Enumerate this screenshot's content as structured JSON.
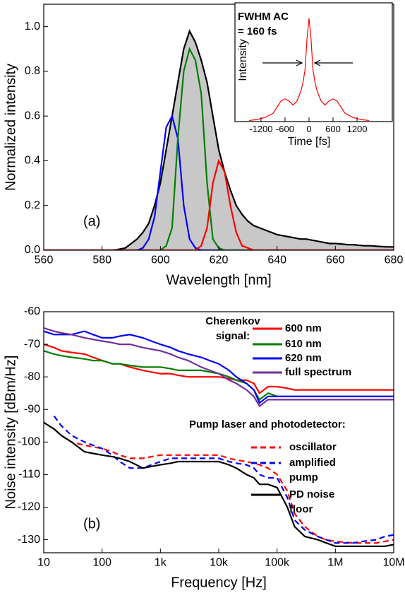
{
  "chart_data": [
    {
      "type": "line",
      "xlabel": "Wavelength [nm]",
      "ylabel": "Normalized intensity",
      "annotation": "(a)",
      "xlim": [
        560,
        680
      ],
      "ylim": [
        0,
        1.1
      ],
      "xticks": [
        560,
        580,
        600,
        620,
        640,
        660,
        680
      ],
      "yticks": [
        {
          "value": 0,
          "label": "0.0"
        },
        0.2,
        0.4,
        0.6,
        0.8,
        {
          "value": 1,
          "label": "1.0"
        }
      ],
      "x": [
        560,
        562,
        564,
        566,
        568,
        570,
        572,
        574,
        576,
        578,
        580,
        582,
        584,
        586,
        588,
        590,
        592,
        594,
        596,
        598,
        600,
        602,
        604,
        606,
        608,
        610,
        612,
        614,
        616,
        618,
        620,
        622,
        624,
        626,
        628,
        630,
        632,
        634,
        636,
        638,
        640,
        642,
        644,
        646,
        648,
        650,
        652,
        654,
        656,
        658,
        660,
        662,
        664,
        666,
        668,
        670,
        672,
        674,
        676,
        678,
        680
      ],
      "series": [
        {
          "color": "#000000",
          "fill": "#c8c8c8",
          "values": [
            0,
            0,
            0,
            0,
            0,
            0,
            0,
            0,
            0,
            0,
            0,
            0,
            0,
            0.005,
            0.01,
            0.03,
            0.05,
            0.08,
            0.12,
            0.2,
            0.3,
            0.45,
            0.6,
            0.75,
            0.9,
            0.98,
            0.93,
            0.85,
            0.75,
            0.6,
            0.45,
            0.35,
            0.27,
            0.2,
            0.16,
            0.13,
            0.11,
            0.1,
            0.09,
            0.08,
            0.07,
            0.065,
            0.06,
            0.055,
            0.05,
            0.05,
            0.045,
            0.04,
            0.035,
            0.03,
            0.03,
            0.028,
            0.025,
            0.025,
            0.022,
            0.02,
            0.02,
            0.018,
            0.016,
            0.015,
            0.015
          ]
        },
        {
          "color": "#0000ff",
          "values": [
            0,
            0,
            0,
            0,
            0,
            0,
            0,
            0,
            0,
            0,
            0,
            0,
            0,
            0,
            0,
            0,
            0,
            0.01,
            0.05,
            0.15,
            0.35,
            0.55,
            0.6,
            0.5,
            0.2,
            0.05,
            0.01,
            0,
            0,
            0,
            0,
            0,
            0,
            0,
            0,
            0,
            0,
            0,
            0,
            0,
            0,
            0,
            0,
            0,
            0,
            0,
            0,
            0,
            0,
            0,
            0,
            0,
            0,
            0,
            0,
            0,
            0,
            0,
            0,
            0,
            0
          ]
        },
        {
          "color": "#008000",
          "values": [
            0,
            0,
            0,
            0,
            0,
            0,
            0,
            0,
            0,
            0,
            0,
            0,
            0,
            0,
            0,
            0,
            0,
            0,
            0,
            0,
            0,
            0.02,
            0.1,
            0.5,
            0.8,
            0.9,
            0.85,
            0.7,
            0.3,
            0.05,
            0.01,
            0,
            0,
            0,
            0,
            0,
            0,
            0,
            0,
            0,
            0,
            0,
            0,
            0,
            0,
            0,
            0,
            0,
            0,
            0,
            0,
            0,
            0,
            0,
            0,
            0,
            0,
            0,
            0,
            0,
            0
          ]
        },
        {
          "color": "#ff0000",
          "values": [
            0,
            0,
            0,
            0,
            0,
            0,
            0,
            0,
            0,
            0,
            0,
            0,
            0,
            0,
            0,
            0,
            0,
            0,
            0,
            0,
            0,
            0,
            0,
            0,
            0,
            0,
            0,
            0.02,
            0.1,
            0.3,
            0.4,
            0.35,
            0.2,
            0.08,
            0.02,
            0.01,
            0,
            0,
            0,
            0,
            0,
            0,
            0,
            0,
            0,
            0,
            0,
            0,
            0,
            0,
            0,
            0,
            0,
            0,
            0,
            0,
            0,
            0,
            0,
            0,
            0
          ]
        }
      ]
    },
    {
      "type": "line",
      "xlabel": "Time [fs]",
      "ylabel": "Intensity",
      "annotations": [
        "FWHM AC",
        "= 160 fs"
      ],
      "xlim": [
        -1850,
        2080
      ],
      "ylim": [
        0,
        1.15
      ],
      "xticks": [
        -1200,
        -600,
        0,
        600,
        1200
      ],
      "x": [
        -1500,
        -1300,
        -1100,
        -900,
        -800,
        -700,
        -600,
        -500,
        -400,
        -300,
        -200,
        -150,
        -100,
        -50,
        0,
        50,
        100,
        150,
        200,
        300,
        400,
        500,
        600,
        700,
        800,
        900,
        1100,
        1300,
        1500
      ],
      "series": [
        {
          "color": "#ff0000",
          "values": [
            0.01,
            0.02,
            0.04,
            0.08,
            0.14,
            0.2,
            0.22,
            0.2,
            0.16,
            0.2,
            0.3,
            0.38,
            0.5,
            0.8,
            1.0,
            0.8,
            0.5,
            0.38,
            0.3,
            0.2,
            0.16,
            0.2,
            0.22,
            0.2,
            0.14,
            0.08,
            0.04,
            0.02,
            0.01
          ]
        }
      ]
    },
    {
      "type": "line",
      "xlabel": "Frequency [Hz]",
      "ylabel": "Noise intensity [dBm/Hz]",
      "annotation": "(b)",
      "log_x": true,
      "legend_titles": [
        "Cherenkov signal:",
        "Pump laser and photodetector:"
      ],
      "xlim": [
        10,
        10000000
      ],
      "ylim": [
        -134,
        -60
      ],
      "xticks": [
        10,
        100,
        {
          "value": 1000,
          "label": "1k"
        },
        {
          "value": 10000,
          "label": "10k"
        },
        {
          "value": 100000,
          "label": "100k"
        },
        {
          "value": 1000000,
          "label": "1M"
        },
        {
          "value": 10000000,
          "label": "10M"
        }
      ],
      "yticks": [
        -60,
        -70,
        -80,
        -90,
        -100,
        -110,
        -120,
        -130
      ],
      "x": [
        10,
        15,
        20,
        30,
        50,
        70,
        100,
        150,
        200,
        300,
        500,
        700,
        1000,
        1500,
        2000,
        3000,
        5000,
        7000,
        10000,
        15000,
        20000,
        30000,
        40000,
        50000,
        70000,
        100000,
        150000,
        200000,
        300000,
        500000,
        700000,
        1000000,
        2000000,
        3000000,
        5000000,
        7000000,
        10000000,
        12000000
      ],
      "series": [
        {
          "name": "600 nm",
          "color": "#ff0000",
          "values": [
            -70,
            -71,
            -72,
            -72.5,
            -73,
            -74,
            -75,
            -76,
            -76,
            -77,
            -78,
            -78.5,
            -79,
            -79,
            -79.5,
            -80,
            -80,
            -80,
            -80,
            -80.5,
            -81,
            -81,
            -82,
            -85,
            -83,
            -83,
            -83.5,
            -84,
            -84,
            -84,
            -84,
            -84,
            -84,
            -84,
            -84,
            -84,
            -84,
            -84
          ]
        },
        {
          "name": "610 nm",
          "color": "#008000",
          "values": [
            -72,
            -73,
            -73.5,
            -74,
            -74.5,
            -75,
            -75,
            -76,
            -76,
            -76.5,
            -77,
            -77,
            -77,
            -77.5,
            -78,
            -78,
            -78,
            -78.5,
            -79,
            -80,
            -81,
            -82,
            -84,
            -87,
            -85,
            -86,
            -86,
            -86,
            -86,
            -86,
            -86,
            -86,
            -86,
            -86,
            -86,
            -86,
            -86,
            -86
          ]
        },
        {
          "name": "620 nm",
          "color": "#0000ff",
          "values": [
            -66,
            -67,
            -67,
            -67,
            -66,
            -67,
            -68,
            -68,
            -67.5,
            -67,
            -68,
            -69,
            -70,
            -71,
            -72,
            -73,
            -74,
            -75,
            -76,
            -78,
            -80,
            -82,
            -84,
            -88,
            -86,
            -86,
            -86,
            -86,
            -86,
            -86,
            -86,
            -86,
            -86,
            -86,
            -86,
            -86,
            -86,
            -86
          ]
        },
        {
          "name": "full spectrum",
          "color": "#7030a0",
          "values": [
            -65,
            -66,
            -66.5,
            -67,
            -68,
            -68.5,
            -69,
            -69.5,
            -70,
            -70,
            -71,
            -71.5,
            -72,
            -73,
            -74,
            -75,
            -77,
            -78,
            -79,
            -81,
            -82,
            -84,
            -86,
            -89,
            -87,
            -87,
            -87,
            -87,
            -87,
            -87,
            -87,
            -87,
            -87,
            -87,
            -87,
            -87,
            -87,
            -87
          ]
        },
        {
          "name": "oscillator",
          "color": "#ff0000",
          "dash": true,
          "values": [
            null,
            -96,
            -98,
            -100,
            -101,
            -101.5,
            -102,
            -103,
            -104,
            -105,
            -105,
            -104.5,
            -104,
            -104,
            -104,
            -104,
            -104,
            -104,
            -104,
            -105,
            -105.5,
            -106,
            -106.5,
            -107,
            -108,
            -110,
            -115,
            -122,
            -126,
            -129,
            -130,
            -130.5,
            -131,
            -131,
            -131,
            -130.5,
            -130,
            -129
          ]
        },
        {
          "name": "amplified pump",
          "color": "#0000ff",
          "dash": true,
          "values": [
            null,
            -92,
            -95,
            -98,
            -100,
            -101,
            -102,
            -104,
            -106,
            -108,
            -108,
            -107,
            -106,
            -105,
            -105,
            -105,
            -105,
            -105,
            -105,
            -106,
            -106.5,
            -107,
            -108,
            -110,
            -111,
            -111,
            -117,
            -124,
            -127,
            -129,
            -130,
            -131,
            -131,
            -130.5,
            -130,
            -129,
            -128.5,
            -128
          ]
        },
        {
          "name": "PD noise floor",
          "color": "#000000",
          "values": [
            -94,
            -96,
            -98,
            -100,
            -103,
            -103.5,
            -104,
            -104.5,
            -105,
            -106,
            -108,
            -107.5,
            -107,
            -106.5,
            -106,
            -106,
            -106,
            -106,
            -106,
            -107,
            -108,
            -110,
            -111,
            -113,
            -113,
            -114,
            -120,
            -126,
            -129,
            -130,
            -131,
            -132,
            -132,
            -132,
            -132,
            -132,
            -131.5,
            -131
          ]
        }
      ]
    }
  ]
}
